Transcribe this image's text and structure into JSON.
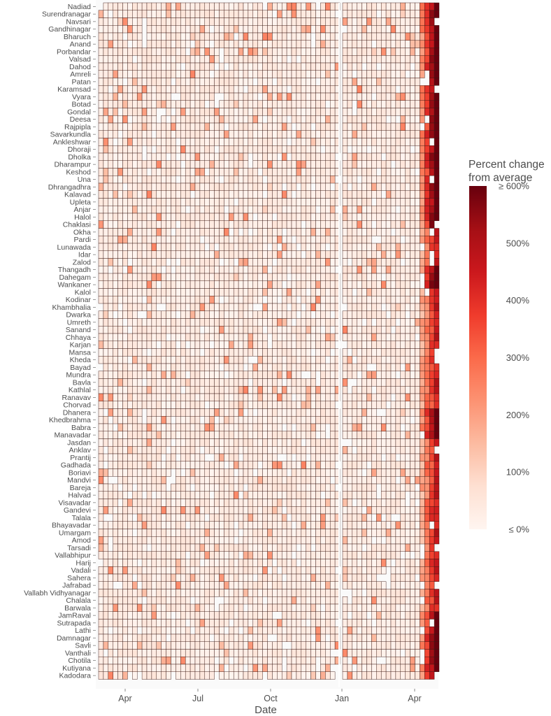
{
  "chart_data": {
    "type": "heatmap",
    "xlabel": "Date",
    "x_ticks": [
      "Apr",
      "Jul",
      "Oct",
      "Jan",
      "Apr"
    ],
    "y_categories": [
      "Nadiad",
      "Surendranagar",
      "Navsari",
      "Gandhinagar",
      "Bharuch",
      "Anand",
      "Porbandar",
      "Valsad",
      "Dahod",
      "Amreli",
      "Patan",
      "Karamsad",
      "Vyara",
      "Botad",
      "Gondal",
      "Deesa",
      "Rajpipla",
      "Savarkundla",
      "Ankleshwar",
      "Dhoraji",
      "Dholka",
      "Dharampur",
      "Keshod",
      "Una",
      "Dhrangadhra",
      "Kalavad",
      "Upleta",
      "Anjar",
      "Halol",
      "Chaklasi",
      "Okha",
      "Pardi",
      "Lunawada",
      "Idar",
      "Zalod",
      "Thangadh",
      "Dahegam",
      "Wankaner",
      "Kalol",
      "Kodinar",
      "Khambhalia",
      "Dwarka",
      "Umreth",
      "Sanand",
      "Chhaya",
      "Karjan",
      "Mansa",
      "Kheda",
      "Bayad",
      "Mundra",
      "Bavla",
      "Kathlal",
      "Ranavav",
      "Chorvad",
      "Dhanera",
      "Khedbrahma",
      "Babra",
      "Manavadar",
      "Jasdan",
      "Anklav",
      "Prantij",
      "Gadhada",
      "Boriavi",
      "Mandvi",
      "Bareja",
      "Halvad",
      "Visavadar",
      "Gandevi",
      "Talala",
      "Bhayavadar",
      "Umargam",
      "Amod",
      "Tarsadi",
      "Vallabhipur",
      "Harij",
      "Vadali",
      "Sahera",
      "Jafrabad",
      "Vallabh Vidhyanagar",
      "Chalala",
      "Barwala",
      "JamRaval",
      "Sutrapada",
      "Lathi",
      "Damnagar",
      "Savli",
      "Vanthali",
      "Chotila",
      "Kutiyana",
      "Kadodara"
    ],
    "legend": {
      "title": "Percent change\nfrom average",
      "ticks": [
        "≥ 600%",
        "500%",
        "400%",
        "300%",
        "200%",
        "100%",
        "≤ 0%"
      ],
      "tick_values": [
        600,
        500,
        400,
        300,
        200,
        100,
        0
      ],
      "min": 0,
      "max": 600,
      "colors": [
        "#fff5f0",
        "#fee0d2",
        "#fcbba1",
        "#fc9272",
        "#fb6a4a",
        "#ef3b2c",
        "#cb181d",
        "#a50f15",
        "#67000d"
      ]
    }
  }
}
